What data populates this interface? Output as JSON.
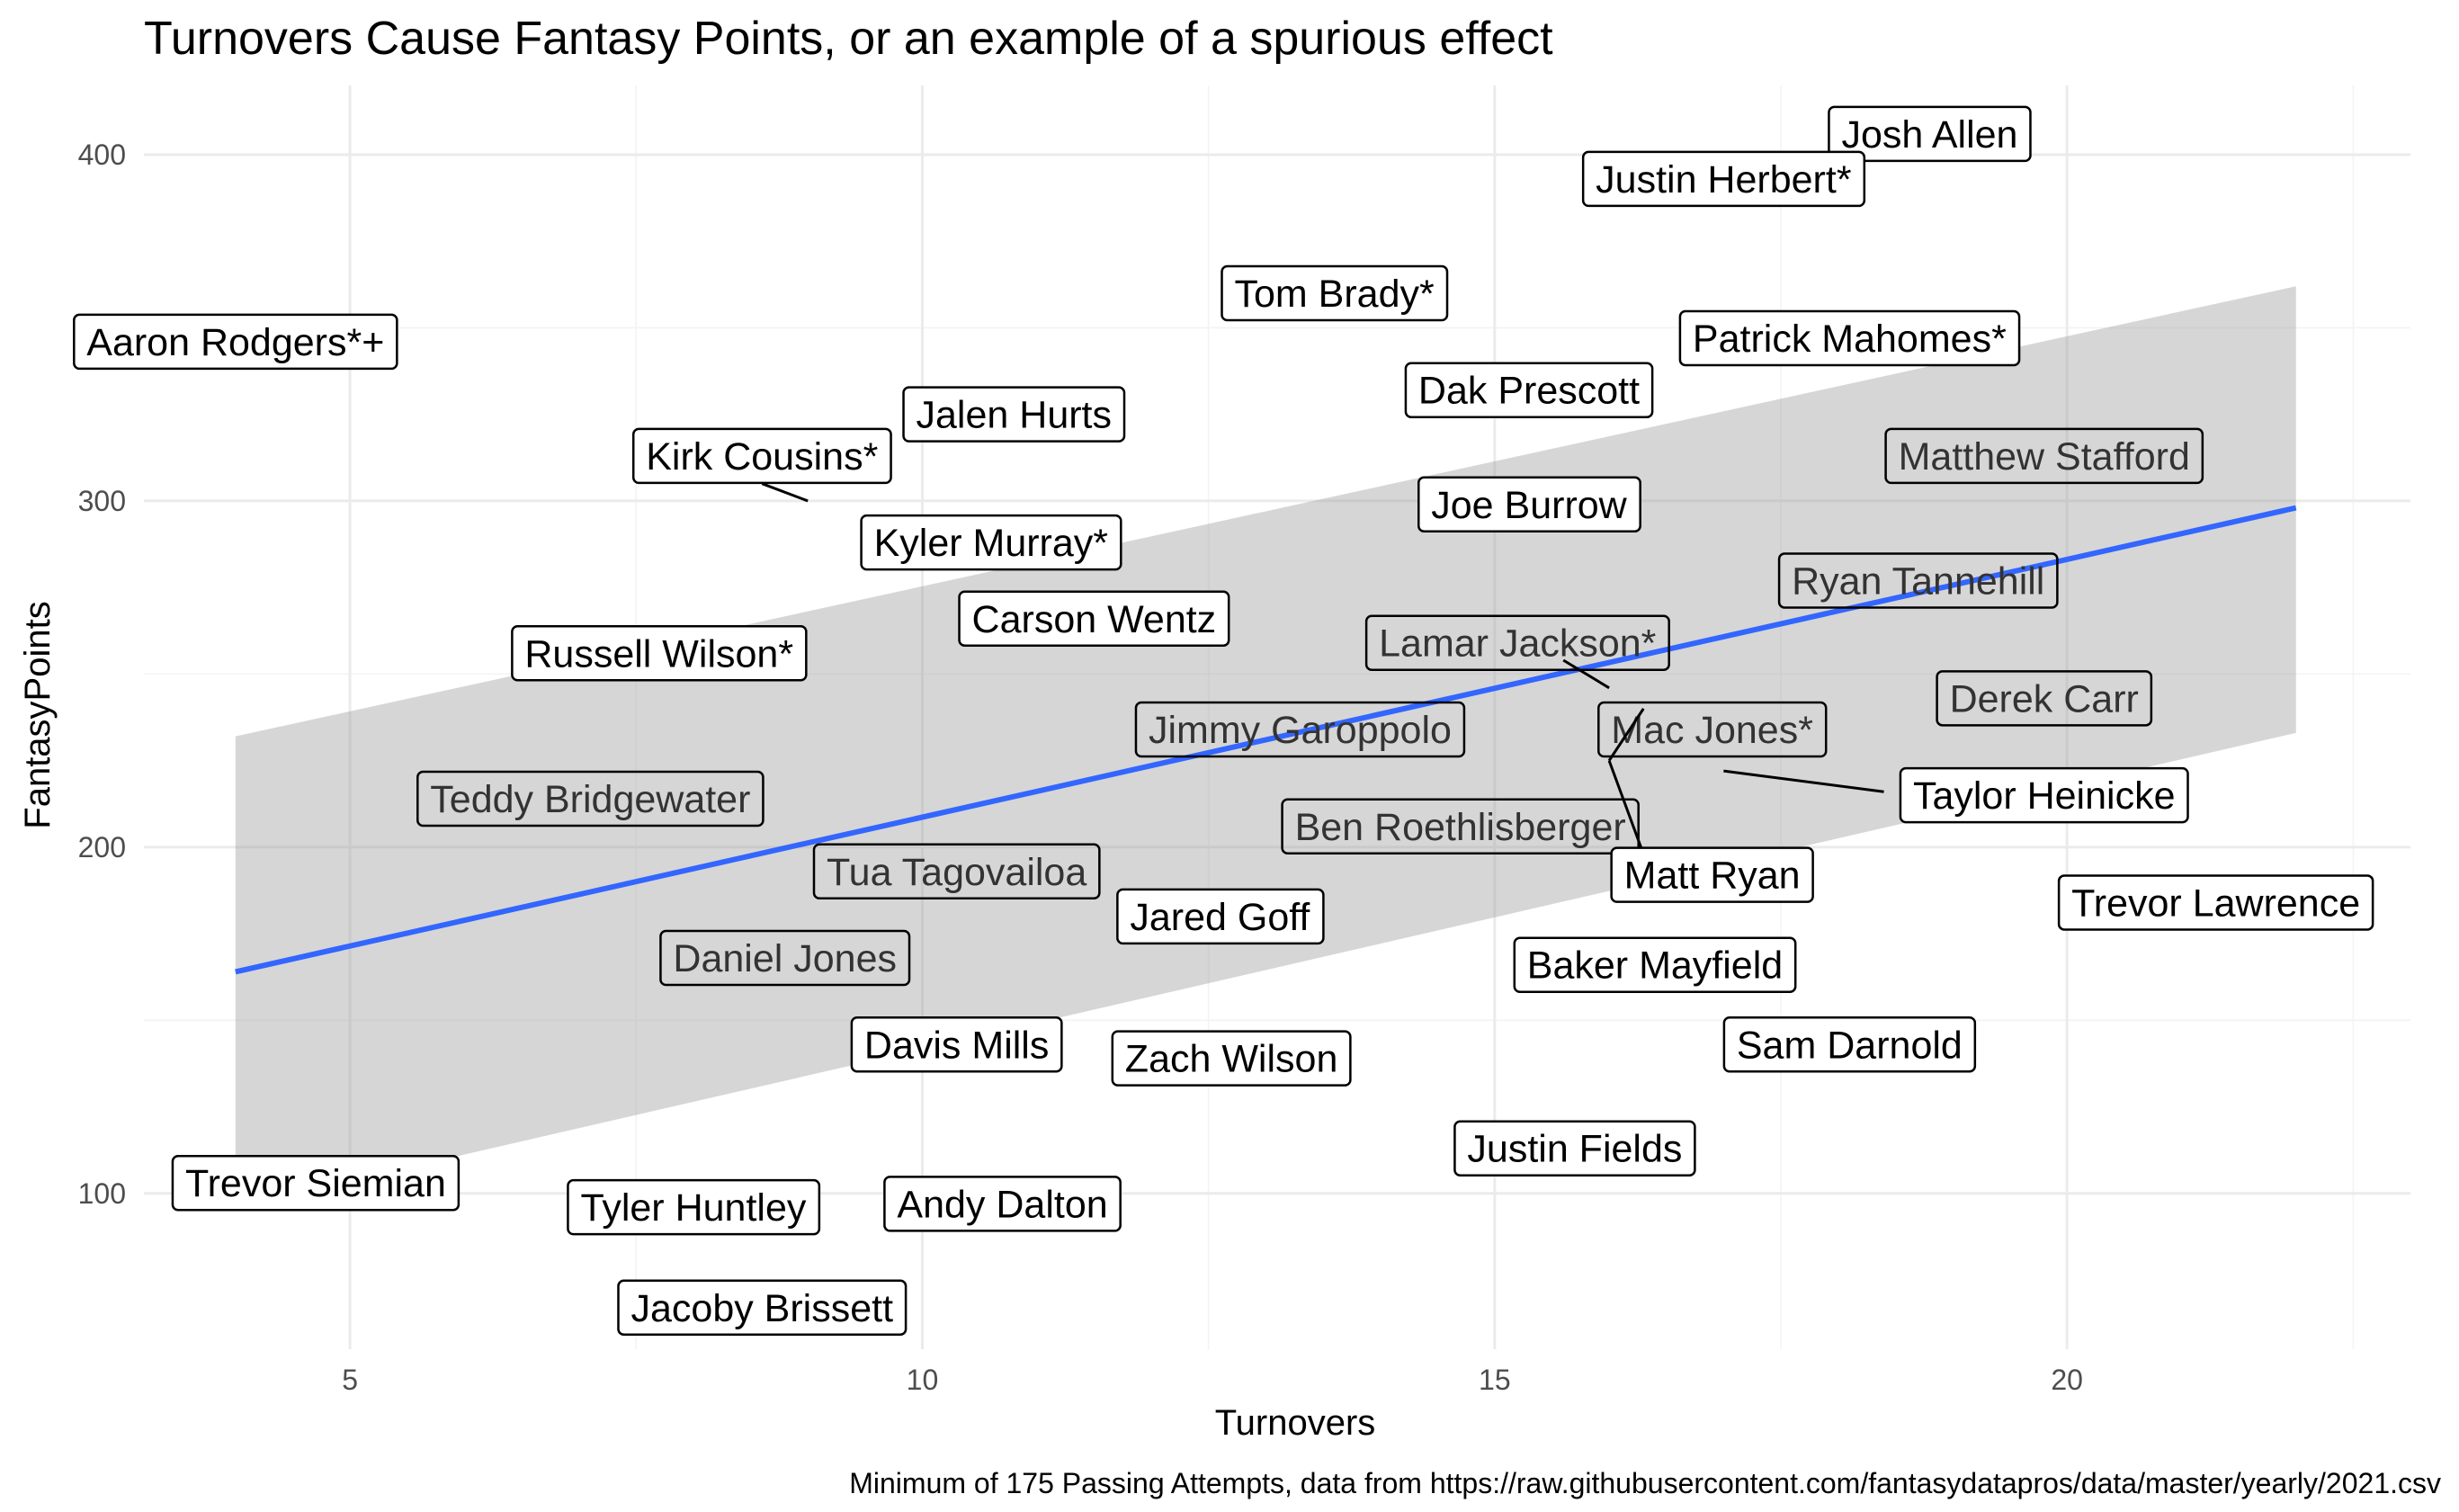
{
  "chart_data": {
    "type": "scatter",
    "title": "Turnovers Cause Fantasy Points, or an example of a spurious effect",
    "xlabel": "Turnovers",
    "ylabel": "FantasyPoints",
    "caption": "Minimum of 175 Passing Attempts, data from https://raw.githubusercontent.com/fantasydatapros/data/master/yearly/2021.csv",
    "xlim": [
      3.2,
      23.0
    ],
    "ylim": [
      55,
      420
    ],
    "x_ticks": [
      5,
      10,
      15,
      20
    ],
    "y_ticks": [
      100,
      200,
      300,
      400
    ],
    "grid": true,
    "legend": "none",
    "colors": {
      "trend_line": "#3366FF",
      "confidence_band": "#999999",
      "label_box_border": "#000000",
      "label_text": "#000000",
      "grid": "#ebebeb"
    },
    "trend": {
      "x": [
        4,
        22
      ],
      "y": [
        164,
        298
      ],
      "ci_lower": [
        96,
        233
      ],
      "ci_upper": [
        232,
        362
      ]
    },
    "points": [
      {
        "label": "Josh Allen",
        "x": 18.8,
        "y": 404
      },
      {
        "label": "Justin Herbert*",
        "x": 16.7,
        "y": 391
      },
      {
        "label": "Tom Brady*",
        "x": 13.5,
        "y": 359
      },
      {
        "label": "Aaron Rodgers*+",
        "x": 4.0,
        "y": 345
      },
      {
        "label": "Patrick Mahomes*",
        "x": 17.9,
        "y": 346
      },
      {
        "label": "Dak Prescott",
        "x": 15.3,
        "y": 331
      },
      {
        "label": "Jalen Hurts",
        "x": 10.8,
        "y": 323
      },
      {
        "label": "Kirk Cousins*",
        "x": 9.0,
        "y": 300
      },
      {
        "label": "Matthew Stafford",
        "x": 19.8,
        "y": 313
      },
      {
        "label": "Joe Burrow",
        "x": 15.3,
        "y": 298
      },
      {
        "label": "Kyler Murray*",
        "x": 10.8,
        "y": 288
      },
      {
        "label": "Ryan Tannehill",
        "x": 18.7,
        "y": 277
      },
      {
        "label": "Carson Wentz",
        "x": 11.5,
        "y": 266
      },
      {
        "label": "Russell Wilson*",
        "x": 7.8,
        "y": 254
      },
      {
        "label": "Lamar Jackson*",
        "x": 15.0,
        "y": 242
      },
      {
        "label": "Derek Carr",
        "x": 19.8,
        "y": 242
      },
      {
        "label": "Mac Jones*",
        "x": 16.0,
        "y": 238
      },
      {
        "label": "Jimmy Garoppolo",
        "x": 13.0,
        "y": 233
      },
      {
        "label": "Teddy Bridgewater",
        "x": 5.3,
        "y": 214
      },
      {
        "label": "Taylor Heinicke",
        "x": 17.0,
        "y": 222
      },
      {
        "label": "Ben Roethlisberger",
        "x": 14.5,
        "y": 206
      },
      {
        "label": "Matt Ryan",
        "x": 16.0,
        "y": 225
      },
      {
        "label": "Tua Tagovailoa",
        "x": 10.1,
        "y": 193
      },
      {
        "label": "Trevor Lawrence",
        "x": 21.8,
        "y": 184
      },
      {
        "label": "Jared Goff",
        "x": 12.8,
        "y": 180
      },
      {
        "label": "Daniel Jones",
        "x": 8.8,
        "y": 168
      },
      {
        "label": "Baker Mayfield",
        "x": 16.4,
        "y": 167
      },
      {
        "label": "Davis Mills",
        "x": 10.4,
        "y": 143
      },
      {
        "label": "Zach Wilson",
        "x": 12.7,
        "y": 138
      },
      {
        "label": "Sam Darnold",
        "x": 18.1,
        "y": 143
      },
      {
        "label": "Justin Fields",
        "x": 15.9,
        "y": 113
      },
      {
        "label": "Trevor Siemian",
        "x": 4.7,
        "y": 103
      },
      {
        "label": "Tyler Huntley",
        "x": 8.0,
        "y": 96
      },
      {
        "label": "Andy Dalton",
        "x": 10.7,
        "y": 97
      },
      {
        "label": "Jacoby Brissett",
        "x": 9.0,
        "y": 67
      }
    ],
    "label_styles": {
      "Matthew Stafford": "behind",
      "Ryan Tannehill": "behind",
      "Lamar Jackson*": "behind",
      "Derek Carr": "behind",
      "Mac Jones*": "behind",
      "Jimmy Garoppolo": "behind",
      "Teddy Bridgewater": "behind",
      "Ben Roethlisberger": "behind",
      "Tua Tagovailoa": "behind",
      "Daniel Jones": "behind"
    },
    "label_positions": {
      "Josh Allen": [
        18.8,
        406
      ],
      "Justin Herbert*": [
        17.0,
        393
      ],
      "Tom Brady*": [
        13.6,
        360
      ],
      "Aaron Rodgers*+": [
        4.0,
        346
      ],
      "Patrick Mahomes*": [
        18.1,
        347
      ],
      "Dak Prescott": [
        15.3,
        332
      ],
      "Jalen Hurts": [
        10.8,
        325
      ],
      "Kirk Cousins*": [
        8.6,
        313
      ],
      "Matthew Stafford": [
        19.8,
        313
      ],
      "Joe Burrow": [
        15.3,
        299
      ],
      "Kyler Murray*": [
        10.6,
        288
      ],
      "Ryan Tannehill": [
        18.7,
        277
      ],
      "Carson Wentz": [
        11.5,
        266
      ],
      "Russell Wilson*": [
        7.7,
        256
      ],
      "Lamar Jackson*": [
        15.2,
        259
      ],
      "Derek Carr": [
        19.8,
        243
      ],
      "Mac Jones*": [
        16.9,
        234
      ],
      "Jimmy Garoppolo": [
        13.3,
        234
      ],
      "Teddy Bridgewater": [
        7.1,
        214
      ],
      "Taylor Heinicke": [
        19.8,
        215
      ],
      "Ben Roethlisberger": [
        14.7,
        206
      ],
      "Matt Ryan": [
        16.9,
        192
      ],
      "Tua Tagovailoa": [
        10.3,
        193
      ],
      "Trevor Lawrence": [
        21.3,
        184
      ],
      "Jared Goff": [
        12.6,
        180
      ],
      "Daniel Jones": [
        8.8,
        168
      ],
      "Baker Mayfield": [
        16.4,
        166
      ],
      "Davis Mills": [
        10.3,
        143
      ],
      "Zach Wilson": [
        12.7,
        139
      ],
      "Sam Darnold": [
        18.1,
        143
      ],
      "Justin Fields": [
        15.7,
        113
      ],
      "Trevor Siemian": [
        4.7,
        103
      ],
      "Tyler Huntley": [
        8.0,
        96
      ],
      "Andy Dalton": [
        10.7,
        97
      ],
      "Jacoby Brissett": [
        8.6,
        67
      ]
    },
    "connectors": [
      {
        "x": [
          9.0,
          8.6
        ],
        "y": [
          300,
          305
        ]
      },
      {
        "x": [
          16.0,
          15.6
        ],
        "y": [
          246,
          254
        ]
      },
      {
        "x": [
          16.0,
          16.3
        ],
        "y": [
          225,
          240
        ]
      },
      {
        "x": [
          16.0,
          16.3
        ],
        "y": [
          225,
          198
        ]
      },
      {
        "x": [
          17.0,
          18.4
        ],
        "y": [
          222,
          216
        ]
      }
    ]
  }
}
